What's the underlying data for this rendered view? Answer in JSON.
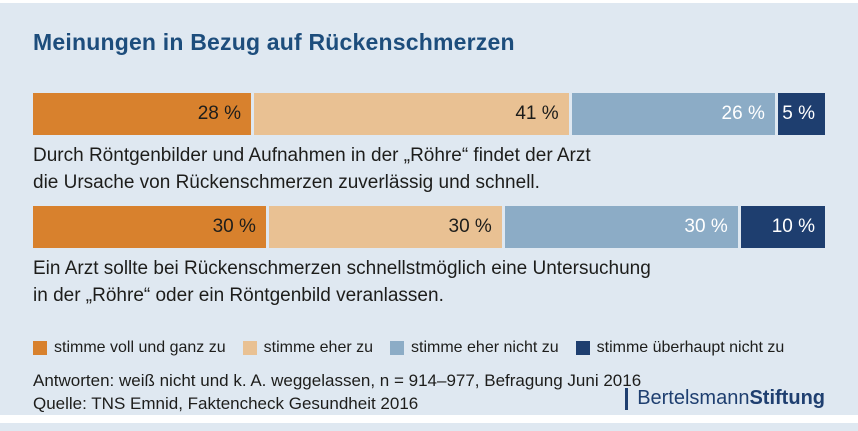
{
  "title": "Meinungen in Bezug auf Rückenschmerzen",
  "colors": {
    "background": "#dfe8f1",
    "title": "#1d4d7c",
    "text": "#1d1d1b",
    "brand": "#1f3f70",
    "segment_label_dark": "#1d1d1b",
    "segment_label_light": "#ffffff"
  },
  "chart_data": {
    "type": "bar",
    "variant": "horizontal-stacked",
    "unit": "%",
    "categories": [
      "stimme voll und ganz zu",
      "stimme eher zu",
      "stimme eher nicht zu",
      "stimme überhaupt nicht zu"
    ],
    "segment_colors": [
      "#d8812d",
      "#e9c193",
      "#8cacc6",
      "#1e3e6f"
    ],
    "legend_position": "bottom",
    "series": [
      {
        "statement_lines": [
          "Durch Röntgenbilder und Aufnahmen in der „Röhre“ findet der Arzt",
          "die Ursache von Rückenschmerzen zuverlässig und schnell."
        ],
        "values": [
          28,
          41,
          26,
          5
        ],
        "labels": [
          "28 %",
          "41 %",
          "26 %",
          "5 %"
        ]
      },
      {
        "statement_lines": [
          "Ein Arzt sollte bei Rückenschmerzen schnellstmöglich eine Untersuchung",
          "in der „Röhre“ oder ein Röntgenbild veranlassen."
        ],
        "values": [
          30,
          30,
          30,
          10
        ],
        "labels": [
          "30 %",
          "30 %",
          "30 %",
          "10 %"
        ]
      }
    ]
  },
  "legend": [
    {
      "label": "stimme voll und ganz zu"
    },
    {
      "label": "stimme eher zu"
    },
    {
      "label": "stimme eher nicht zu"
    },
    {
      "label": "stimme überhaupt nicht zu"
    }
  ],
  "footer": {
    "note": "Antworten: weiß nicht und k. A. weggelassen, n = 914–977, Befragung Juni 2016",
    "source": "Quelle: TNS Emnid, Faktencheck Gesundheit 2016"
  },
  "brand": {
    "name_regular": "Bertelsmann",
    "name_bold": "Stiftung"
  }
}
